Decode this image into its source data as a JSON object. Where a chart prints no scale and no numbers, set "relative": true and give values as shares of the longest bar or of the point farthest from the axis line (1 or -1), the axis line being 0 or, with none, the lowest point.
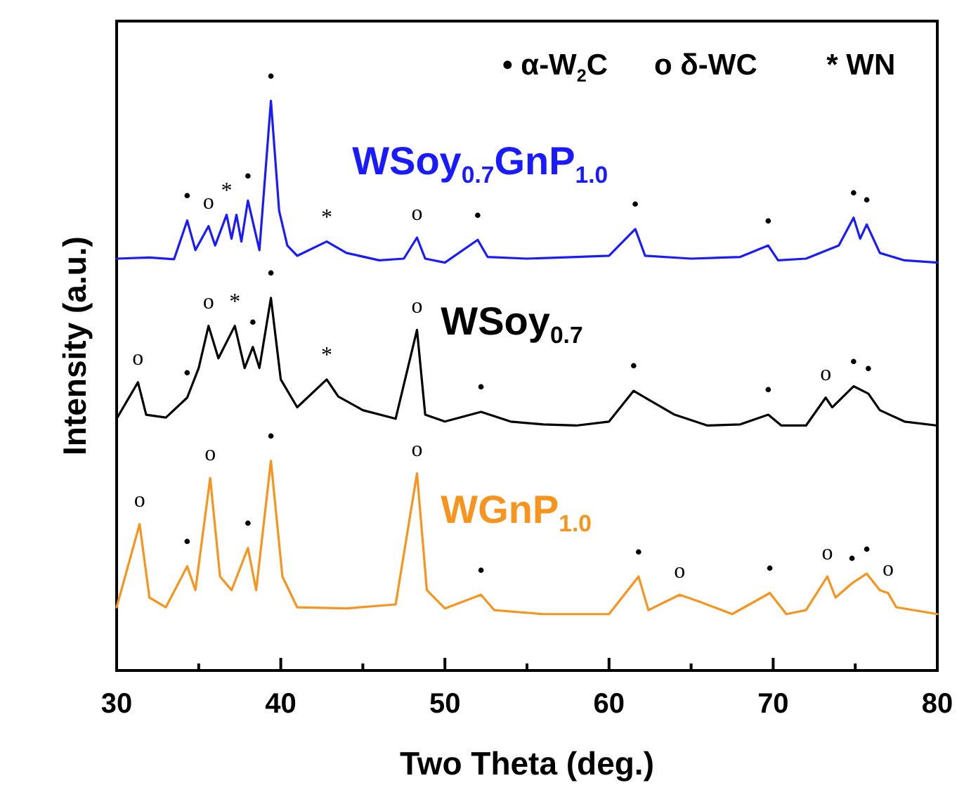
{
  "chart_data": {
    "type": "line",
    "relative": true,
    "xlabel": "Two Theta (deg.)",
    "ylabel": "Intensity (a.u.)",
    "xlim": [
      30,
      80
    ],
    "xticks": [
      30,
      {
        "value": 35,
        "label": null
      },
      40,
      {
        "value": 45,
        "label": null
      },
      50,
      {
        "value": 55,
        "label": null
      },
      60,
      {
        "value": 65,
        "label": null
      },
      70,
      {
        "value": 75,
        "label": null
      },
      80
    ],
    "series": [
      {
        "name": "WSoy$_{0.7}$GnP$_{1.0}$",
        "color": "#1a1aff",
        "x": [
          30,
          32,
          33.5,
          34.3,
          34.8,
          35.6,
          36.0,
          36.7,
          37.0,
          37.3,
          37.6,
          38.0,
          38.7,
          39.4,
          39.9,
          40.4,
          41,
          42.8,
          44,
          46,
          47.5,
          48.3,
          48.8,
          50,
          52.0,
          52.6,
          55,
          58,
          60,
          61.6,
          62.2,
          65,
          68,
          69.7,
          70.3,
          72,
          74,
          74.9,
          75.3,
          75.7,
          76.5,
          78,
          80
        ],
        "values": [
          0.723,
          0.725,
          0.722,
          0.79,
          0.738,
          0.78,
          0.746,
          0.8,
          0.758,
          0.8,
          0.753,
          0.825,
          0.738,
          1.0,
          0.807,
          0.746,
          0.728,
          0.753,
          0.733,
          0.72,
          0.723,
          0.76,
          0.723,
          0.716,
          0.756,
          0.726,
          0.723,
          0.726,
          0.728,
          0.775,
          0.728,
          0.723,
          0.726,
          0.746,
          0.72,
          0.723,
          0.746,
          0.795,
          0.758,
          0.783,
          0.733,
          0.72,
          0.716
        ]
      },
      {
        "name": "WSoy$_{0.7}$",
        "color": "#000000",
        "x": [
          30,
          31.3,
          31.8,
          33,
          34.3,
          35,
          35.6,
          36.2,
          37.2,
          37.8,
          38.3,
          38.7,
          39.4,
          40,
          41,
          42.8,
          43.5,
          45,
          47,
          48.3,
          48.8,
          50,
          52.2,
          54,
          56,
          58,
          60,
          61.5,
          62.5,
          64,
          66,
          68,
          69.7,
          70.5,
          72,
          73.2,
          73.6,
          74.9,
          75.8,
          76.5,
          78,
          80
        ],
        "values": [
          0.442,
          0.506,
          0.449,
          0.444,
          0.479,
          0.531,
          0.605,
          0.548,
          0.605,
          0.531,
          0.568,
          0.531,
          0.654,
          0.511,
          0.462,
          0.511,
          0.481,
          0.457,
          0.442,
          0.598,
          0.449,
          0.437,
          0.454,
          0.437,
          0.432,
          0.43,
          0.437,
          0.491,
          0.474,
          0.449,
          0.43,
          0.432,
          0.449,
          0.43,
          0.43,
          0.479,
          0.462,
          0.499,
          0.486,
          0.457,
          0.437,
          0.43
        ]
      },
      {
        "name": "WGnP$_{1.0}$",
        "color": "#f7941d",
        "x": [
          30,
          31.4,
          32,
          33,
          34.3,
          34.8,
          35.7,
          36.3,
          37,
          38.0,
          38.5,
          39.4,
          40.1,
          41,
          44,
          47,
          48.3,
          48.9,
          50,
          52.2,
          53,
          56,
          60,
          61.8,
          62.4,
          64.3,
          65.5,
          67.5,
          69.8,
          70.8,
          72,
          73.3,
          73.8,
          74.8,
          75.7,
          76.5,
          77.0,
          77.5,
          80
        ],
        "values": [
          0.111,
          0.257,
          0.128,
          0.111,
          0.183,
          0.141,
          0.338,
          0.165,
          0.141,
          0.215,
          0.141,
          0.368,
          0.165,
          0.111,
          0.109,
          0.116,
          0.346,
          0.141,
          0.109,
          0.133,
          0.106,
          0.099,
          0.099,
          0.165,
          0.106,
          0.133,
          0.121,
          0.099,
          0.136,
          0.099,
          0.106,
          0.165,
          0.128,
          0.153,
          0.17,
          0.141,
          0.136,
          0.111,
          0.099
        ]
      }
    ],
    "annotations": [
      "• α-W$_{2}$C",
      "o δ-WC",
      "* WN",
      {
        "text": "•",
        "x": 34.3,
        "y": 0.79
      },
      {
        "text": "o",
        "x": 35.6,
        "y": 0.78
      },
      {
        "text": "*",
        "x": 36.7,
        "y": 0.8
      },
      {
        "text": "•",
        "x": 38.0,
        "y": 0.825
      },
      {
        "text": "•",
        "x": 39.4,
        "y": 1.0
      },
      {
        "text": "*",
        "x": 42.8,
        "y": 0.753
      },
      {
        "text": "o",
        "x": 48.3,
        "y": 0.76
      },
      {
        "text": "•",
        "x": 52.0,
        "y": 0.756
      },
      {
        "text": "•",
        "x": 61.6,
        "y": 0.775
      },
      {
        "text": "•",
        "x": 69.7,
        "y": 0.746
      },
      {
        "text": "•",
        "x": 74.9,
        "y": 0.795
      },
      {
        "text": "•",
        "x": 75.7,
        "y": 0.783
      },
      {
        "text": "o",
        "x": 31.3,
        "y": 0.506
      },
      {
        "text": "•",
        "x": 34.3,
        "y": 0.479
      },
      {
        "text": "o",
        "x": 35.6,
        "y": 0.605
      },
      {
        "text": "*",
        "x": 37.2,
        "y": 0.605
      },
      {
        "text": "•",
        "x": 38.3,
        "y": 0.568
      },
      {
        "text": "•",
        "x": 39.4,
        "y": 0.654
      },
      {
        "text": "*",
        "x": 42.8,
        "y": 0.511
      },
      {
        "text": "o",
        "x": 48.3,
        "y": 0.598
      },
      {
        "text": "•",
        "x": 52.2,
        "y": 0.454
      },
      {
        "text": "•",
        "x": 61.5,
        "y": 0.491
      },
      {
        "text": "•",
        "x": 69.7,
        "y": 0.449
      },
      {
        "text": "o",
        "x": 73.2,
        "y": 0.479
      },
      {
        "text": "•",
        "x": 74.9,
        "y": 0.499
      },
      {
        "text": "•",
        "x": 75.8,
        "y": 0.486
      },
      {
        "text": "o",
        "x": 31.4,
        "y": 0.257
      },
      {
        "text": "•",
        "x": 34.3,
        "y": 0.183
      },
      {
        "text": "o",
        "x": 35.7,
        "y": 0.338
      },
      {
        "text": "•",
        "x": 38.0,
        "y": 0.215
      },
      {
        "text": "•",
        "x": 39.4,
        "y": 0.368
      },
      {
        "text": "o",
        "x": 48.3,
        "y": 0.346
      },
      {
        "text": "•",
        "x": 52.2,
        "y": 0.133
      },
      {
        "text": "•",
        "x": 61.8,
        "y": 0.165
      },
      {
        "text": "o",
        "x": 64.3,
        "y": 0.133
      },
      {
        "text": "•",
        "x": 69.8,
        "y": 0.136
      },
      {
        "text": "o",
        "x": 73.3,
        "y": 0.165
      },
      {
        "text": "•",
        "x": 74.8,
        "y": 0.153
      },
      {
        "text": "•",
        "x": 75.7,
        "y": 0.17
      },
      {
        "text": "o",
        "x": 77.0,
        "y": 0.136
      }
    ]
  }
}
